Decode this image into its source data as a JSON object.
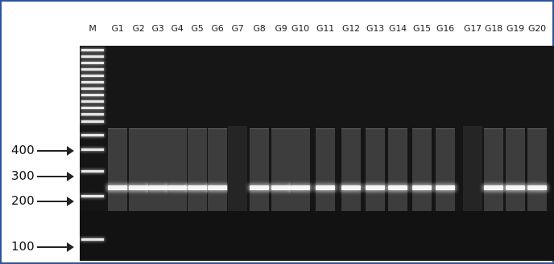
{
  "lanes": [
    "M",
    "G1",
    "G2",
    "G3",
    "G4",
    "G5",
    "G6",
    "G7",
    "G8",
    "G9",
    "G10",
    "G11",
    "G12",
    "G13",
    "G14",
    "G15",
    "G16",
    "G17",
    "G18",
    "G19",
    "G20"
  ],
  "size_markers": [
    "400",
    "300",
    "200",
    "100"
  ],
  "empty_lanes": [
    "G7",
    "G17"
  ],
  "colors": {
    "gel": "#151515",
    "band": "#f5f5f5",
    "frame": "#2f5597"
  }
}
